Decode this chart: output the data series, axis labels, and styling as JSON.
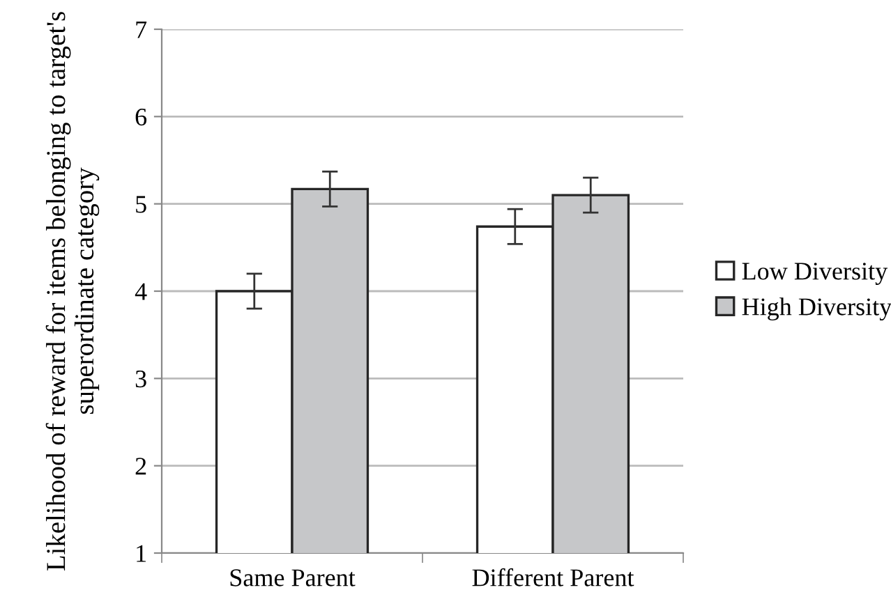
{
  "chart_data": {
    "type": "bar",
    "ylabel": "Likelihood of reward for items belonging to target's superordinate category",
    "categories": [
      "Same Parent",
      "Different Parent"
    ],
    "series": [
      {
        "name": "Low Diversity",
        "color": "#ffffff",
        "values": [
          4.0,
          4.74
        ],
        "errors": [
          0.2,
          0.2
        ]
      },
      {
        "name": "High Diversity",
        "color": "#c6c7c9",
        "values": [
          5.17,
          5.1
        ],
        "errors": [
          0.2,
          0.2
        ]
      }
    ],
    "ylim": [
      1,
      7
    ],
    "yticks": [
      1,
      2,
      3,
      4,
      5,
      6,
      7
    ],
    "grid": "y",
    "legend": "right"
  }
}
